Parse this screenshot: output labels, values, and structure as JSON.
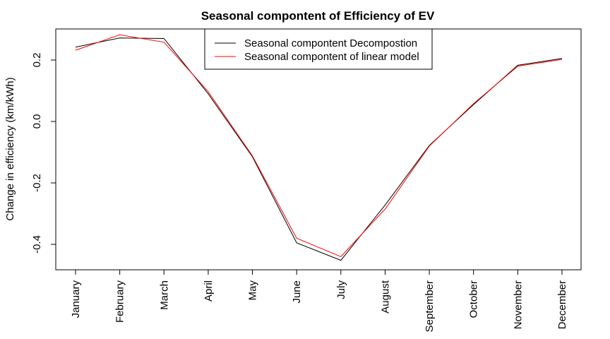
{
  "chart_data": {
    "type": "line",
    "title": "Seasonal compontent of Efficiency of EV",
    "xlabel": "",
    "ylabel": "Change in efficiency (km/kWh)",
    "categories": [
      "January",
      "February",
      "March",
      "April",
      "May",
      "June",
      "July",
      "August",
      "September",
      "October",
      "November",
      "December"
    ],
    "yticks": [
      0.2,
      0.0,
      -0.2,
      -0.4
    ],
    "ytick_labels": [
      "0.2",
      "0.0",
      "-0.2",
      "-0.4"
    ],
    "ylim": [
      -0.48,
      0.3
    ],
    "grid": false,
    "legend_position": "top-center",
    "series": [
      {
        "name": "Seasonal compontent Decompostion",
        "color": "#000000",
        "values": [
          0.242,
          0.272,
          0.27,
          0.09,
          -0.115,
          -0.395,
          -0.452,
          -0.272,
          -0.078,
          0.055,
          0.183,
          0.205
        ]
      },
      {
        "name": "Seasonal compontent of linear model",
        "color": "#ff0000",
        "values": [
          0.232,
          0.282,
          0.258,
          0.097,
          -0.112,
          -0.38,
          -0.44,
          -0.285,
          -0.08,
          0.058,
          0.18,
          0.202
        ]
      }
    ]
  }
}
